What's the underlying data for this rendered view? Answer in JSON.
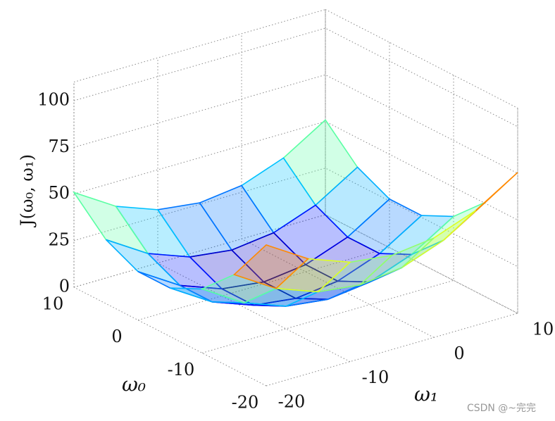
{
  "chart_data": {
    "type": "surface",
    "colormap": "jet",
    "xlabel": "ω₁",
    "ylabel": "ω₀",
    "zlabel": "J(ω₀, ω₁)",
    "x": [
      -20,
      -15,
      -10,
      -5,
      0,
      5,
      10
    ],
    "y": [
      -20,
      -15,
      -10,
      -5,
      0,
      5,
      10
    ],
    "z": [
      [
        75.5,
        61.6,
        53.3,
        50.5,
        53.3,
        61.6,
        75.5
      ],
      [
        50.8,
        36.9,
        28.6,
        25.8,
        28.6,
        36.9,
        50.8
      ],
      [
        34.3,
        20.4,
        12.1,
        9.3,
        12.1,
        20.4,
        34.3
      ],
      [
        26,
        12.1,
        3.8,
        1,
        3.8,
        12.1,
        26
      ],
      [
        26,
        12.1,
        3.8,
        1,
        3.8,
        12.1,
        26
      ],
      [
        34.3,
        20.4,
        12.1,
        9.3,
        12.1,
        20.4,
        34.3
      ],
      [
        50.8,
        36.9,
        28.6,
        25.8,
        28.6,
        36.9,
        50.8
      ]
    ],
    "xlim": [
      -20,
      10
    ],
    "ylim": [
      -20,
      10
    ],
    "zlim": [
      0,
      110
    ],
    "xticks": [
      -20,
      -10,
      0,
      10
    ],
    "yticks": [
      -20,
      -10,
      0,
      10
    ],
    "zticks": [
      0,
      25,
      50,
      75,
      100
    ],
    "grid": true
  },
  "watermark": "CSDN @~完完"
}
